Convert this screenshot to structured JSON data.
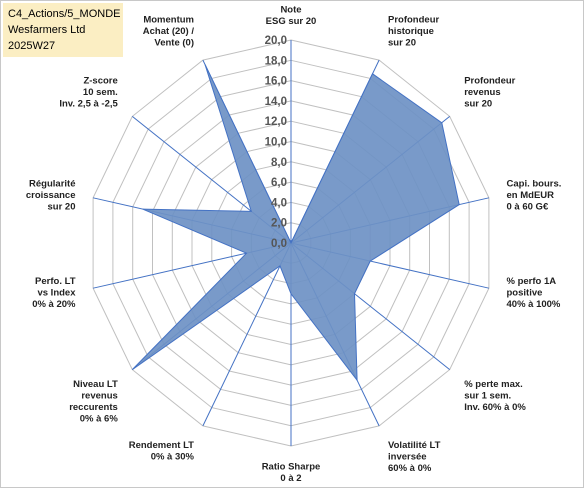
{
  "title_box": {
    "line1": "C4_Actions/5_MONDE",
    "line2": "Wesfarmers Ltd",
    "line3": "2025W27",
    "background": "#fbeec3"
  },
  "chart_data": {
    "type": "radar",
    "ylim": [
      0,
      20
    ],
    "tick_labels": [
      "0,0",
      "2,0",
      "4,0",
      "6,0",
      "8,0",
      "10,0",
      "12,0",
      "14,0",
      "16,0",
      "18,0",
      "20,0"
    ],
    "grid": true,
    "series_color": "#6e91c4",
    "series_edge_color": "#4472c4",
    "axes": [
      {
        "label": [
          "Note",
          "ESG sur 20"
        ],
        "value": 0.0
      },
      {
        "label": [
          "Profondeur",
          "historique",
          "sur 20"
        ],
        "value": 18.5
      },
      {
        "label": [
          "Profondeur",
          "revenus",
          "sur 20"
        ],
        "value": 19.0
      },
      {
        "label": [
          "Capi. bours.",
          "en MdEUR",
          "0 à 60 G€"
        ],
        "value": 17.0
      },
      {
        "label": [
          "% perfo 1A",
          "positive",
          "40% à 100%"
        ],
        "value": 8.0
      },
      {
        "label": [
          "% perte max.",
          "sur 1 sem.",
          "Inv. 60% à 0%"
        ],
        "value": 8.0
      },
      {
        "label": [
          "Volatilité LT",
          "inversée",
          "60% à 0%"
        ],
        "value": 15.0
      },
      {
        "label": [
          "Ratio Sharpe",
          "0 à 2"
        ],
        "value": 5.0
      },
      {
        "label": [
          "Rendement LT",
          "0% à 30%"
        ],
        "value": 2.5
      },
      {
        "label": [
          "Niveau LT",
          "revenus",
          "reccurents",
          "0% à 6%"
        ],
        "value": 20.0
      },
      {
        "label": [
          "Perfo. LT",
          "vs Index",
          "0% à 20%"
        ],
        "value": 4.5
      },
      {
        "label": [
          "Régularité",
          "croissance",
          "sur 20"
        ],
        "value": 15.0
      },
      {
        "label": [
          "Z-score",
          "10 sem.",
          "Inv. 2,5 à -2,5"
        ],
        "value": 5.0
      },
      {
        "label": [
          "Momentum",
          "Achat (20) /",
          "Vente (0)"
        ],
        "value": 19.5
      }
    ]
  }
}
